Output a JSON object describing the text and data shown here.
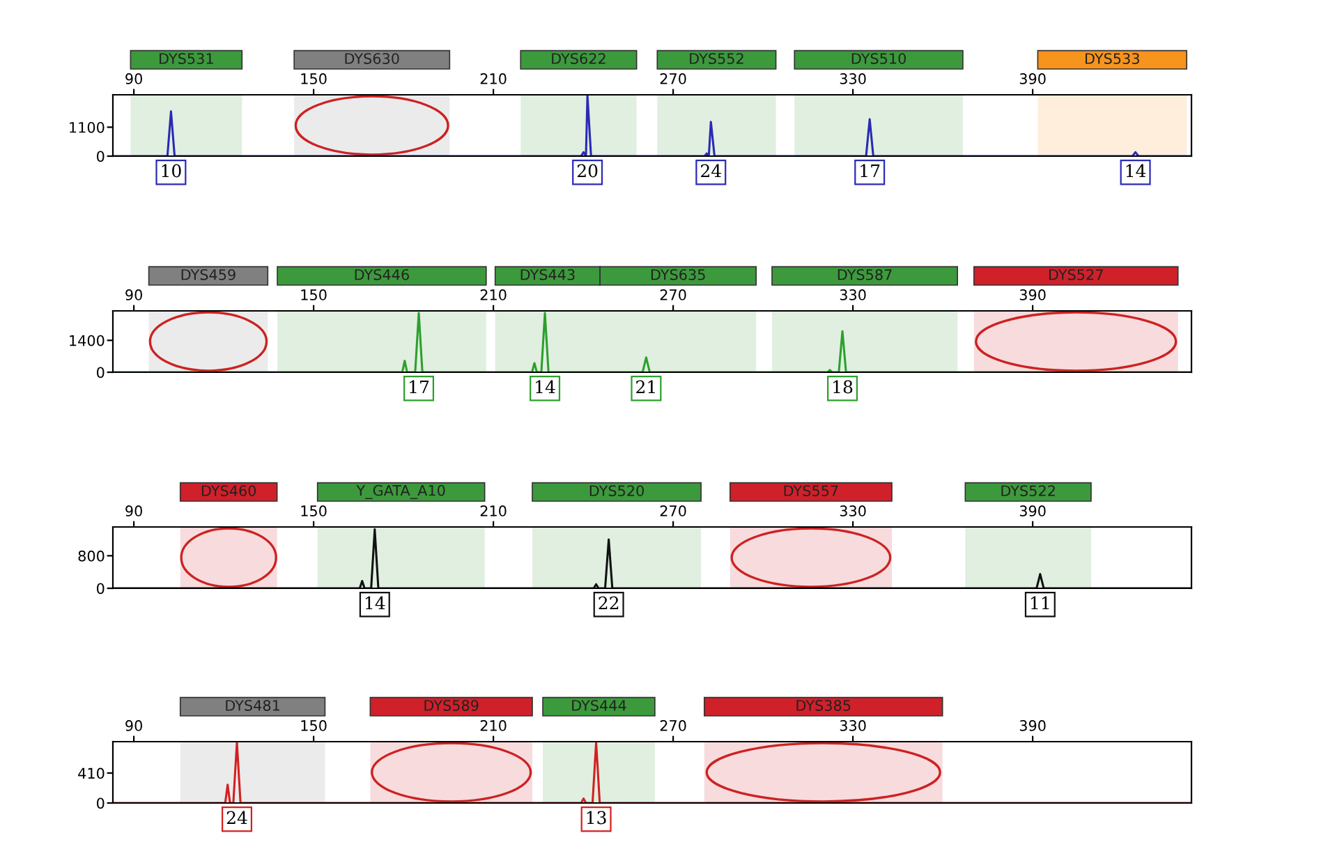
{
  "chart_data": [
    {
      "type": "line",
      "xlim": [
        83,
        443
      ],
      "xticks": [
        90,
        150,
        210,
        270,
        330,
        390
      ],
      "ylim": [
        0,
        2330
      ],
      "yticks": [
        0,
        1100
      ],
      "grid": false,
      "legend": false,
      "series": [
        {
          "color": "#2a2ab4",
          "x": [
            83,
            101.2,
            102.4,
            103.6,
            239.3,
            240.1,
            240.9,
            241.4,
            242.6,
            280.5,
            281.2,
            281.9,
            282.6,
            283.8,
            334.4,
            335.6,
            336.8,
            423.3,
            424.3,
            425.3,
            443
          ],
          "values": [
            0,
            0,
            1700,
            0,
            0,
            150,
            0,
            2300,
            0,
            0,
            100,
            0,
            1300,
            0,
            0,
            1400,
            0,
            0,
            150,
            0,
            0
          ]
        }
      ],
      "bands": [
        {
          "axis": "x",
          "from": 88.9,
          "to": 126.1,
          "label": "DYS531",
          "color": "#3c9a3c"
        },
        {
          "axis": "x",
          "from": 143.5,
          "to": 195.4,
          "label": "DYS630",
          "color": "#808080"
        },
        {
          "axis": "x",
          "from": 219.1,
          "to": 257.8,
          "label": "DYS622",
          "color": "#3c9a3c"
        },
        {
          "axis": "x",
          "from": 264.7,
          "to": 304.3,
          "label": "DYS552",
          "color": "#3c9a3c"
        },
        {
          "axis": "x",
          "from": 310.5,
          "to": 366.7,
          "label": "DYS510",
          "color": "#3c9a3c"
        },
        {
          "axis": "x",
          "from": 391.7,
          "to": 441.4,
          "label": "DYS533",
          "color": "#f7941d"
        }
      ],
      "annotations": [
        {
          "text": "10",
          "x": 102.4,
          "y": 0
        },
        {
          "text": "20",
          "x": 241.4,
          "y": 0
        },
        {
          "text": "24",
          "x": 282.6,
          "y": 0
        },
        {
          "text": "17",
          "x": 335.6,
          "y": 0
        },
        {
          "text": "14",
          "x": 424.3,
          "y": 0
        }
      ]
    },
    {
      "type": "line",
      "xlim": [
        83,
        443
      ],
      "xticks": [
        90,
        150,
        210,
        270,
        330,
        390
      ],
      "ylim": [
        0,
        2695
      ],
      "yticks": [
        0,
        1400
      ],
      "grid": false,
      "legend": false,
      "series": [
        {
          "color": "#2ca02c",
          "x": [
            83,
            179.6,
            180.4,
            181.2,
            183.9,
            185.1,
            186.3,
            222.9,
            223.7,
            224.5,
            226,
            227.2,
            228.4,
            259.8,
            261,
            262.2,
            321.5,
            322.3,
            323.1,
            325.3,
            326.5,
            327.7,
            443
          ],
          "values": [
            0,
            0,
            500,
            0,
            0,
            2600,
            0,
            0,
            400,
            0,
            0,
            2600,
            0,
            0,
            650,
            0,
            0,
            100,
            0,
            0,
            1800,
            0,
            0
          ]
        }
      ],
      "bands": [
        {
          "axis": "x",
          "from": 95,
          "to": 134.7,
          "label": "DYS459",
          "color": "#808080"
        },
        {
          "axis": "x",
          "from": 137.9,
          "to": 207.6,
          "label": "DYS446",
          "color": "#3c9a3c"
        },
        {
          "axis": "x",
          "from": 210.6,
          "to": 245.6,
          "label": "DYS443",
          "color": "#3c9a3c"
        },
        {
          "axis": "x",
          "from": 245.6,
          "to": 297.7,
          "label": "DYS635",
          "color": "#3c9a3c"
        },
        {
          "axis": "x",
          "from": 303,
          "to": 364.9,
          "label": "DYS587",
          "color": "#3c9a3c"
        },
        {
          "axis": "x",
          "from": 370.4,
          "to": 438.5,
          "label": "DYS527",
          "color": "#d0202a"
        }
      ],
      "annotations": [
        {
          "text": "17",
          "x": 185.1,
          "y": 0
        },
        {
          "text": "14",
          "x": 227.2,
          "y": 0
        },
        {
          "text": "21",
          "x": 261,
          "y": 0
        },
        {
          "text": "18",
          "x": 326.5,
          "y": 0
        }
      ]
    },
    {
      "type": "line",
      "xlim": [
        83,
        443
      ],
      "xticks": [
        90,
        150,
        210,
        270,
        330,
        390
      ],
      "ylim": [
        0,
        1508
      ],
      "yticks": [
        0,
        800
      ],
      "grid": false,
      "legend": false,
      "series": [
        {
          "color": "#111111",
          "x": [
            83,
            165.4,
            166.2,
            167,
            169.2,
            170.4,
            171.6,
            243.5,
            244.3,
            245.1,
            247.3,
            248.5,
            249.7,
            391.3,
            392.5,
            393.7,
            443
          ],
          "values": [
            0,
            0,
            180,
            0,
            0,
            1450,
            0,
            0,
            100,
            0,
            0,
            1200,
            0,
            0,
            350,
            0,
            0
          ]
        }
      ],
      "bands": [
        {
          "axis": "x",
          "from": 105.5,
          "to": 137.8,
          "label": "DYS460",
          "color": "#d0202a"
        },
        {
          "axis": "x",
          "from": 151.3,
          "to": 207.1,
          "label": "Y_GATA_A10",
          "color": "#3c9a3c"
        },
        {
          "axis": "x",
          "from": 223,
          "to": 279.3,
          "label": "DYS520",
          "color": "#3c9a3c"
        },
        {
          "axis": "x",
          "from": 289,
          "to": 343,
          "label": "DYS557",
          "color": "#d0202a"
        },
        {
          "axis": "x",
          "from": 367.5,
          "to": 409.5,
          "label": "DYS522",
          "color": "#3c9a3c"
        }
      ],
      "annotations": [
        {
          "text": "14",
          "x": 170.4,
          "y": 0
        },
        {
          "text": "22",
          "x": 248.5,
          "y": 0
        },
        {
          "text": "11",
          "x": 392.5,
          "y": 0
        }
      ]
    },
    {
      "type": "line",
      "xlim": [
        83,
        443
      ],
      "xticks": [
        90,
        150,
        210,
        270,
        330,
        390
      ],
      "ylim": [
        0,
        840
      ],
      "yticks": [
        0,
        410
      ],
      "grid": false,
      "legend": false,
      "series": [
        {
          "color": "#d42020",
          "x": [
            83,
            120.5,
            121.3,
            122.1,
            123.2,
            124.4,
            125.6,
            239.3,
            240.1,
            240.9,
            243.1,
            244.3,
            245.5,
            443
          ],
          "values": [
            0,
            0,
            250,
            0,
            0,
            830,
            0,
            0,
            60,
            0,
            0,
            830,
            0,
            0
          ]
        }
      ],
      "bands": [
        {
          "axis": "x",
          "from": 105.5,
          "to": 153.8,
          "label": "DYS481",
          "color": "#808080"
        },
        {
          "axis": "x",
          "from": 168.9,
          "to": 223,
          "label": "DYS589",
          "color": "#d0202a"
        },
        {
          "axis": "x",
          "from": 226.5,
          "to": 263.9,
          "label": "DYS444",
          "color": "#3c9a3c"
        },
        {
          "axis": "x",
          "from": 280.4,
          "to": 359.9,
          "label": "DYS385",
          "color": "#d0202a"
        }
      ],
      "annotations": [
        {
          "text": "24",
          "x": 124.4,
          "y": 0
        },
        {
          "text": "13",
          "x": 244.3,
          "y": 0
        }
      ]
    }
  ]
}
